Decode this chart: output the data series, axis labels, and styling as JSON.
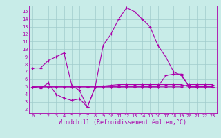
{
  "xlabel": "Windchill (Refroidissement éolien,°C)",
  "bg_color": "#c8ece8",
  "grid_color": "#a0cccc",
  "line_color": "#aa00aa",
  "x_ticks": [
    0,
    1,
    2,
    3,
    4,
    5,
    6,
    7,
    8,
    9,
    10,
    11,
    12,
    13,
    14,
    15,
    16,
    17,
    18,
    19,
    20,
    21,
    22,
    23
  ],
  "y_ticks": [
    2,
    3,
    4,
    5,
    6,
    7,
    8,
    9,
    10,
    11,
    12,
    13,
    14,
    15
  ],
  "ylim": [
    1.5,
    15.8
  ],
  "xlim": [
    -0.5,
    23.5
  ],
  "series1_x": [
    0,
    1,
    2,
    3,
    4,
    5,
    6,
    7,
    8,
    9,
    10,
    11,
    12,
    13,
    14,
    15,
    16,
    17,
    18,
    19,
    20,
    21,
    22,
    23
  ],
  "series1_y": [
    7.5,
    7.5,
    8.5,
    9.0,
    9.5,
    5.2,
    4.5,
    2.3,
    5.0,
    10.5,
    12.0,
    14.0,
    15.5,
    15.0,
    14.0,
    13.0,
    10.5,
    9.0,
    7.0,
    6.5,
    5.0,
    5.0,
    5.0,
    5.0
  ],
  "series2_x": [
    0,
    1,
    2,
    3,
    4,
    5,
    6,
    7,
    8,
    9,
    10,
    11,
    12,
    13,
    14,
    15,
    16,
    17,
    18,
    19,
    20,
    21,
    22,
    23
  ],
  "series2_y": [
    5.0,
    4.8,
    5.5,
    4.0,
    3.5,
    3.2,
    3.4,
    2.3,
    5.0,
    5.0,
    5.0,
    5.0,
    5.0,
    5.0,
    5.0,
    5.0,
    5.0,
    5.0,
    5.0,
    5.0,
    5.3,
    5.3,
    5.3,
    5.3
  ],
  "series3_x": [
    0,
    1,
    2,
    3,
    4,
    5,
    6,
    7,
    8,
    9,
    10,
    11,
    12,
    13,
    14,
    15,
    16,
    17,
    18,
    19,
    20,
    21,
    22,
    23
  ],
  "series3_y": [
    5.0,
    5.0,
    5.0,
    5.0,
    5.0,
    5.0,
    5.0,
    5.0,
    5.0,
    5.0,
    5.0,
    5.0,
    5.0,
    5.0,
    5.0,
    5.0,
    5.0,
    6.5,
    6.7,
    6.7,
    5.0,
    5.0,
    5.0,
    5.0
  ],
  "series4_x": [
    0,
    1,
    2,
    3,
    4,
    5,
    6,
    7,
    8,
    9,
    10,
    11,
    12,
    13,
    14,
    15,
    16,
    17,
    18,
    19,
    20,
    21,
    22,
    23
  ],
  "series4_y": [
    5.0,
    5.0,
    5.0,
    5.0,
    5.0,
    5.0,
    5.0,
    5.0,
    5.0,
    5.1,
    5.2,
    5.3,
    5.3,
    5.3,
    5.3,
    5.3,
    5.3,
    5.3,
    5.3,
    5.3,
    5.0,
    5.0,
    5.0,
    5.0
  ],
  "xlabel_fontsize": 6.0,
  "tick_fontsize": 5.0
}
